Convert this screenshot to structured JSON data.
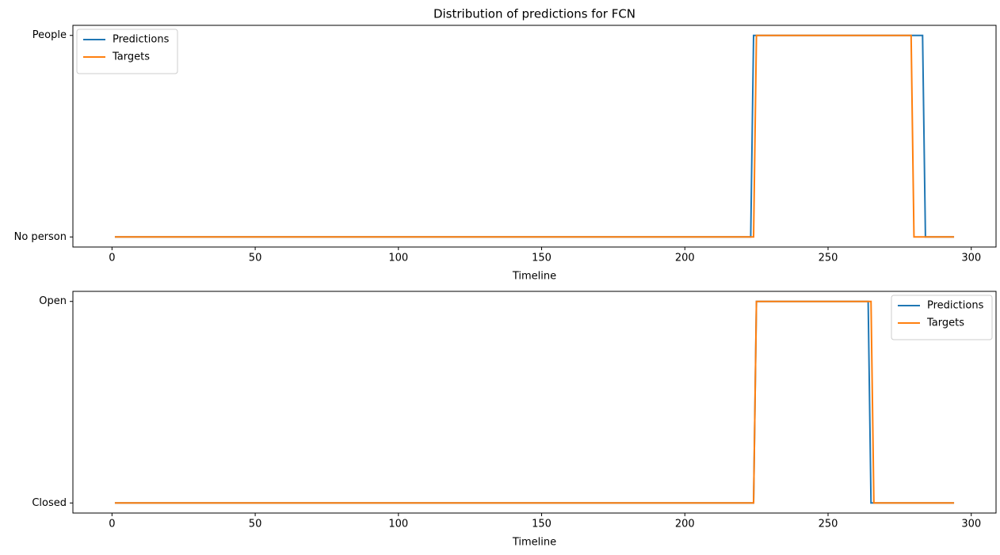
{
  "chart_data": [
    {
      "type": "line",
      "title": "Distribution of predictions for FCN",
      "x_label": "Timeline",
      "xlim": [
        -13.65,
        308.65
      ],
      "xticks": [
        0,
        50,
        100,
        150,
        200,
        250,
        300
      ],
      "ylim": [
        -0.05,
        1.05
      ],
      "yticks": [
        {
          "value": 0,
          "label": "No person"
        },
        {
          "value": 1,
          "label": "People"
        }
      ],
      "legend": "upper left",
      "series": [
        {
          "name": "Predictions",
          "color": "#1f77b4",
          "x": [
            1,
            223,
            224,
            283,
            284,
            294
          ],
          "values": [
            0,
            0,
            1,
            1,
            0,
            0
          ]
        },
        {
          "name": "Targets",
          "color": "#ff7f0e",
          "x": [
            1,
            224,
            225,
            279,
            280,
            294
          ],
          "values": [
            0,
            0,
            1,
            1,
            0,
            0
          ]
        }
      ]
    },
    {
      "type": "line",
      "x_label": "Timeline",
      "xlim": [
        -13.65,
        308.65
      ],
      "xticks": [
        0,
        50,
        100,
        150,
        200,
        250,
        300
      ],
      "ylim": [
        -0.05,
        1.05
      ],
      "yticks": [
        {
          "value": 0,
          "label": "Closed"
        },
        {
          "value": 1,
          "label": "Open"
        }
      ],
      "legend": "upper right",
      "series": [
        {
          "name": "Predictions",
          "color": "#1f77b4",
          "x": [
            1,
            224,
            225,
            264,
            265,
            294
          ],
          "values": [
            0,
            0,
            1,
            1,
            0,
            0
          ]
        },
        {
          "name": "Targets",
          "color": "#ff7f0e",
          "x": [
            1,
            224,
            225,
            265,
            266,
            294
          ],
          "values": [
            0,
            0,
            1,
            1,
            0,
            0
          ]
        }
      ]
    }
  ]
}
